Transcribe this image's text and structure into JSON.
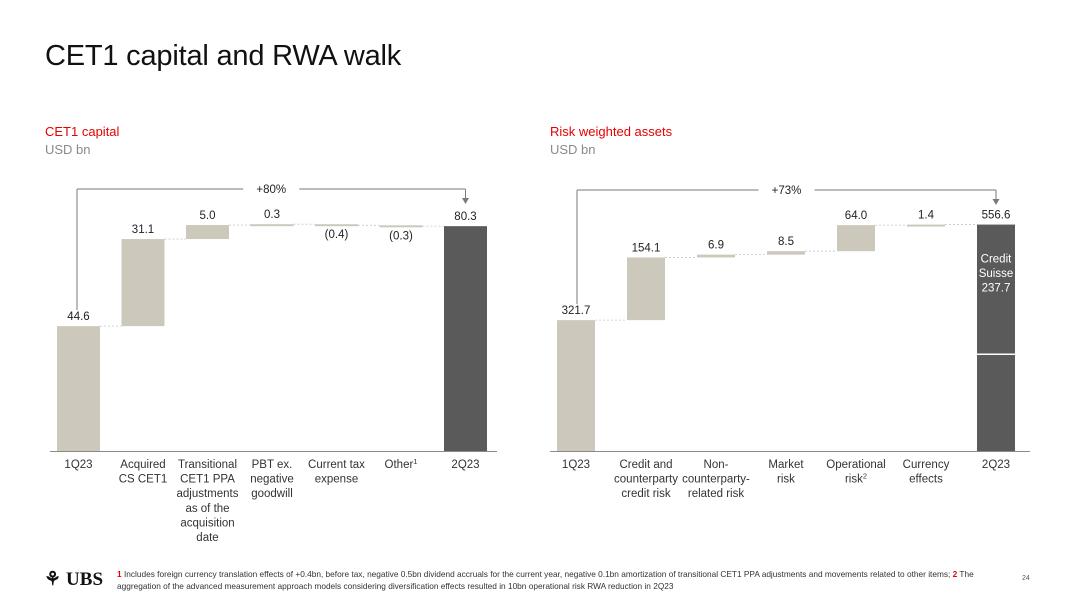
{
  "title": "CET1 capital and RWA walk",
  "colors": {
    "accent": "#e60000",
    "bar_light": "#ccc8bb",
    "bar_dark": "#5a5a5a",
    "connector": "#c8c8c8",
    "bracket": "#7a7a7a"
  },
  "footnote": {
    "n1": "1",
    "t1": "Includes foreign currency translation effects of +0.4bn, before tax, negative 0.5bn dividend accruals for the current year, negative 0.1bn amortization of transitional CET1 PPA adjustments and movements related to other items;",
    "n2": "2",
    "t2": "The aggregation of the advanced measurement approach models considering diversification effects resulted in 10bn operational risk RWA reduction in 2Q23"
  },
  "logo": {
    "text": "UBS",
    "icon": "ubs-keys-icon"
  },
  "page_number": "24",
  "chart_data": [
    {
      "type": "bar",
      "subtype": "waterfall",
      "title": "CET1 capital",
      "unit": "USD bn",
      "bracket_label": "+80%",
      "ylim": [
        0,
        82.5
      ],
      "grid": false,
      "bars": [
        {
          "category": [
            "1Q23"
          ],
          "kind": "total",
          "value": 44.6,
          "label": "44.6"
        },
        {
          "category": [
            "Acquired",
            "CS CET1"
          ],
          "kind": "delta",
          "value": 31.1,
          "label": "31.1"
        },
        {
          "category": [
            "Transitional",
            "CET1 PPA",
            "adjustments",
            "as of the",
            "acquisition",
            "date"
          ],
          "kind": "delta",
          "value": 5.0,
          "label": "5.0"
        },
        {
          "category": [
            "PBT ex.",
            "negative",
            "goodwill"
          ],
          "kind": "delta",
          "value": 0.3,
          "label": "0.3"
        },
        {
          "category": [
            "Current tax",
            "expense"
          ],
          "kind": "delta",
          "value": -0.4,
          "label": "(0.4)"
        },
        {
          "category": [
            "Other"
          ],
          "sup": "1",
          "kind": "delta",
          "value": -0.3,
          "label": "(0.3)"
        },
        {
          "category": [
            "2Q23"
          ],
          "kind": "total",
          "value": 80.3,
          "label": "80.3"
        }
      ]
    },
    {
      "type": "bar",
      "subtype": "waterfall",
      "title": "Risk weighted assets",
      "unit": "USD bn",
      "bracket_label": "+73%",
      "ylim": [
        0,
        572
      ],
      "grid": false,
      "bars": [
        {
          "category": [
            "1Q23"
          ],
          "kind": "total",
          "value": 321.7,
          "label": "321.7"
        },
        {
          "category": [
            "Credit and",
            "counterparty",
            "credit risk"
          ],
          "kind": "delta",
          "value": 154.1,
          "label": "154.1"
        },
        {
          "category": [
            "Non-",
            "counterparty-",
            "related risk"
          ],
          "kind": "delta",
          "value": 6.9,
          "label": "6.9"
        },
        {
          "category": [
            "Market",
            "risk"
          ],
          "kind": "delta",
          "value": 8.5,
          "label": "8.5"
        },
        {
          "category": [
            "Operational",
            "risk"
          ],
          "sup": "2",
          "kind": "delta",
          "value": 64.0,
          "label": "64.0"
        },
        {
          "category": [
            "Currency",
            "effects"
          ],
          "kind": "delta",
          "value": 1.4,
          "label": "1.4"
        },
        {
          "category": [
            "2Q23"
          ],
          "kind": "total",
          "value": 556.6,
          "label": "556.6",
          "segment": {
            "value": 237.7,
            "label": [
              "Credit",
              "Suisse",
              "237.7"
            ]
          }
        }
      ]
    }
  ]
}
